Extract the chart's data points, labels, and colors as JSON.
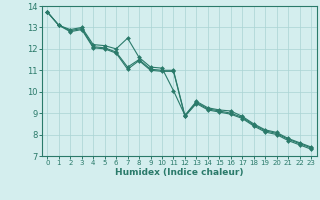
{
  "xlabel": "Humidex (Indice chaleur)",
  "background_color": "#d4eeee",
  "grid_color": "#aad4d4",
  "line_color": "#2a7a6a",
  "xlim": [
    -0.5,
    23.5
  ],
  "ylim": [
    7,
    14
  ],
  "xticks": [
    0,
    1,
    2,
    3,
    4,
    5,
    6,
    7,
    8,
    9,
    10,
    11,
    12,
    13,
    14,
    15,
    16,
    17,
    18,
    19,
    20,
    21,
    22,
    23
  ],
  "yticks": [
    7,
    8,
    9,
    10,
    11,
    12,
    13,
    14
  ],
  "line1_x": [
    0,
    1,
    2,
    3,
    4,
    5,
    6,
    7,
    8,
    9,
    10,
    11,
    12,
    13,
    14,
    15,
    16,
    17,
    18,
    19,
    20,
    21,
    22,
    23
  ],
  "line1_y": [
    13.72,
    13.1,
    12.9,
    13.0,
    12.2,
    12.15,
    12.0,
    12.5,
    11.6,
    11.15,
    11.1,
    10.05,
    8.9,
    9.55,
    9.25,
    9.15,
    9.1,
    8.85,
    8.5,
    8.22,
    8.1,
    7.82,
    7.62,
    7.42
  ],
  "line2_x": [
    0,
    1,
    2,
    3,
    4,
    5,
    6,
    7,
    8,
    9,
    10,
    11,
    12,
    13,
    14,
    15,
    16,
    17,
    18,
    19,
    20,
    21,
    22,
    23
  ],
  "line2_y": [
    13.72,
    13.1,
    12.85,
    12.95,
    12.1,
    12.05,
    11.85,
    11.15,
    11.5,
    11.05,
    11.0,
    11.0,
    8.88,
    9.5,
    9.2,
    9.1,
    9.0,
    8.8,
    8.45,
    8.18,
    8.05,
    7.78,
    7.58,
    7.38
  ],
  "line3_x": [
    0,
    1,
    2,
    3,
    4,
    5,
    6,
    7,
    8,
    9,
    10,
    11,
    12,
    13,
    14,
    15,
    16,
    17,
    18,
    19,
    20,
    21,
    22,
    23
  ],
  "line3_y": [
    13.72,
    13.1,
    12.8,
    12.9,
    12.05,
    12.0,
    11.8,
    11.05,
    11.45,
    11.0,
    10.95,
    10.95,
    8.85,
    9.45,
    9.15,
    9.05,
    8.95,
    8.75,
    8.4,
    8.12,
    8.0,
    7.72,
    7.52,
    7.32
  ]
}
